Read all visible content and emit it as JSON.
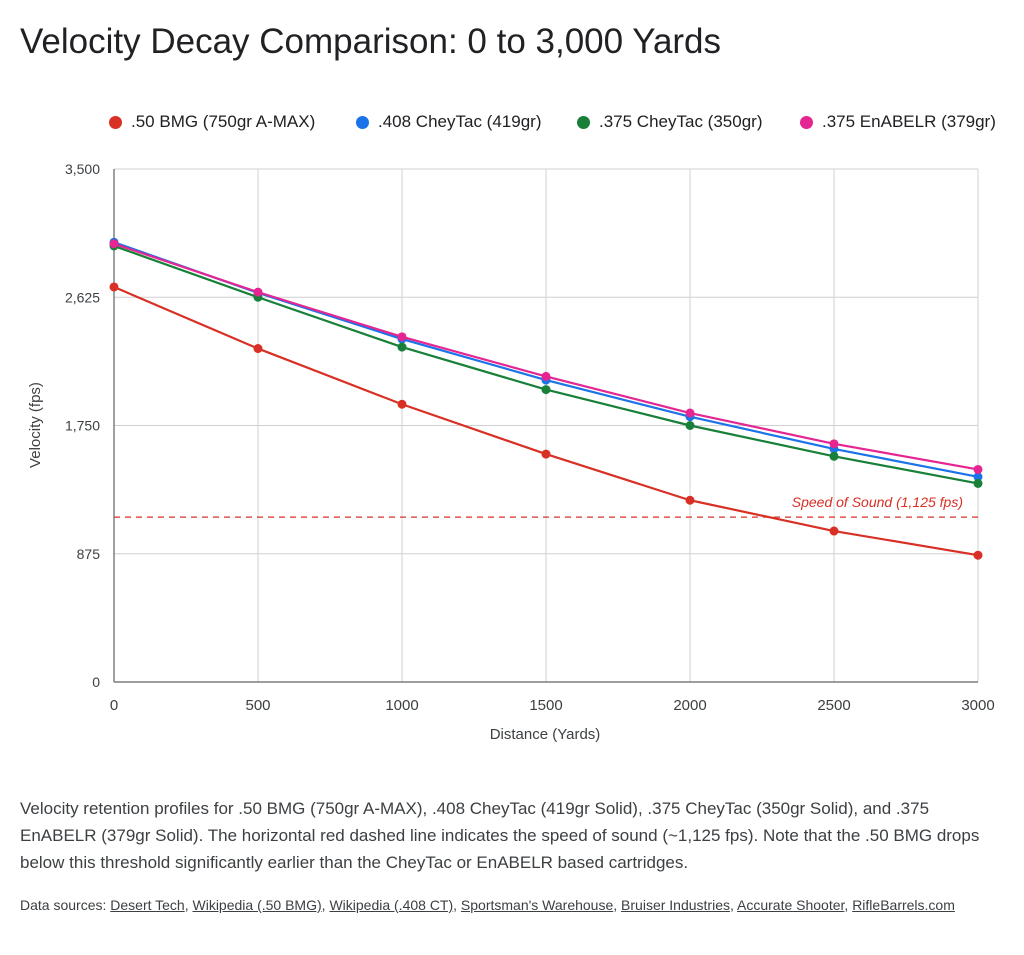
{
  "title": "Velocity Decay Comparison: 0 to 3,000 Yards",
  "caption": "Velocity retention profiles for .50 BMG (750gr A-MAX), .408 CheyTac (419gr Solid), .375 CheyTac (350gr Solid), and .375 EnABELR (379gr Solid). The horizontal red dashed line indicates the speed of sound (~1,125 fps). Note that the .50 BMG drops below this threshold significantly earlier than the CheyTac or EnABELR based cartridges.",
  "sources": {
    "label": "Data sources:",
    "links": [
      "Desert Tech",
      "Wikipedia (.50 BMG)",
      "Wikipedia (.408 CT)",
      "Sportsman's Warehouse",
      "Bruiser Industries",
      "Accurate Shooter",
      "RifleBarrels.com"
    ]
  },
  "chart_data": {
    "type": "line",
    "title": "Velocity Decay Comparison: 0 to 3,000 Yards",
    "xlabel": "Distance (Yards)",
    "ylabel": "Velocity (fps)",
    "x": [
      0,
      500,
      1000,
      1500,
      2000,
      2500,
      3000
    ],
    "x_tick_labels": [
      "0",
      "500",
      "1000",
      "1500",
      "2000",
      "2500",
      "3000"
    ],
    "ylim": [
      0,
      3500
    ],
    "y_ticks": [
      0,
      875,
      1750,
      2625,
      3500
    ],
    "y_tick_labels": [
      "0",
      "875",
      "1,750",
      "2,625",
      "3,500"
    ],
    "grid": true,
    "legend": "top",
    "series": [
      {
        "name": ".50 BMG (750gr A-MAX)",
        "color": "#d93025",
        "values": [
          2695,
          2275,
          1895,
          1555,
          1240,
          1030,
          865
        ]
      },
      {
        "name": ".408 CheyTac (419gr)",
        "color": "#1a73e8",
        "values": [
          3000,
          2655,
          2340,
          2060,
          1810,
          1590,
          1400
        ]
      },
      {
        "name": ".375 CheyTac (350gr)",
        "color": "#188038",
        "values": [
          2975,
          2625,
          2285,
          1995,
          1750,
          1540,
          1355
        ]
      },
      {
        "name": ".375 EnABELR (379gr)",
        "color": "#e52592",
        "values": [
          2990,
          2660,
          2355,
          2085,
          1835,
          1625,
          1450
        ]
      }
    ],
    "reference_line": {
      "value": 1125,
      "label": "Speed of Sound (1,125 fps)",
      "color": "#d93025",
      "style": "dashed"
    }
  }
}
